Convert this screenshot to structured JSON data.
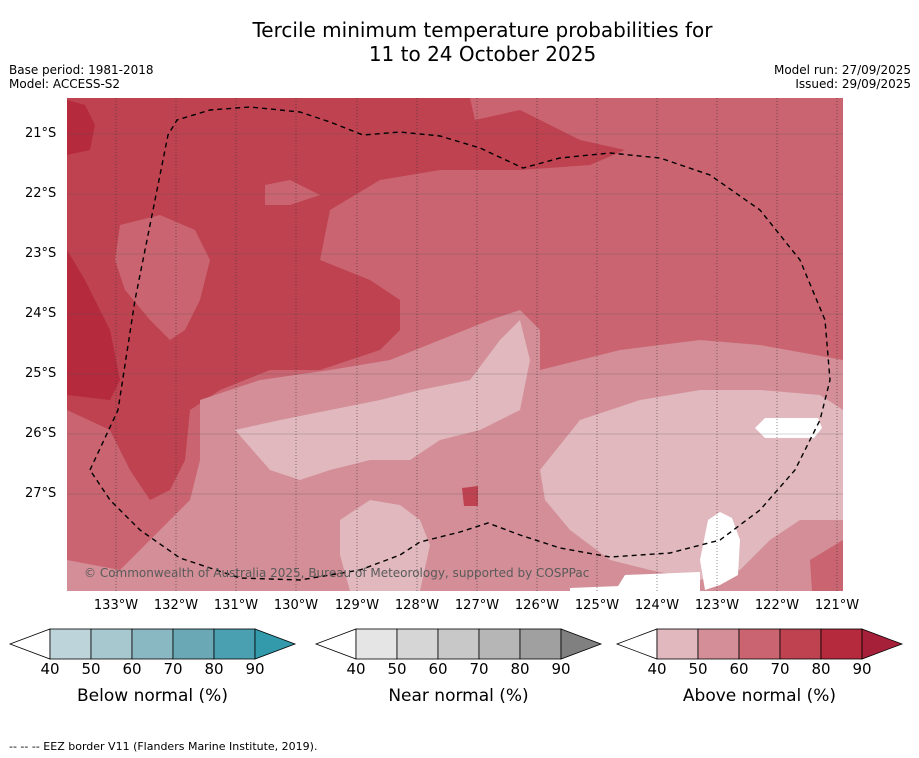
{
  "title": {
    "line1": "Tercile minimum temperature probabilities for",
    "line2": "11 to 24 October 2025"
  },
  "meta": {
    "base_period": "Base period: 1981-2018",
    "model": "Model: ACCESS-S2",
    "model_run": "Model run: 27/09/2025",
    "issued": "Issued: 29/09/2025"
  },
  "map": {
    "lat_labels": [
      "21°S",
      "22°S",
      "23°S",
      "24°S",
      "25°S",
      "26°S",
      "27°S"
    ],
    "lon_labels": [
      "133°W",
      "132°W",
      "131°W",
      "130°W",
      "129°W",
      "128°W",
      "127°W",
      "126°W",
      "125°W",
      "124°W",
      "123°W",
      "122°W",
      "121°W"
    ],
    "copyright": "© Commonwealth of Australia 2025, Bureau of Meteorology, supported by COSPPac",
    "colors": {
      "above_40": "#e0b8be",
      "above_50": "#d38e97",
      "above_60": "#c96470",
      "above_70": "#bf4250",
      "above_80": "#b52a3d",
      "white": "#ffffff",
      "eez_border": "#000000"
    }
  },
  "colorbars": [
    {
      "label": "Below normal (%)",
      "ticks": [
        "40",
        "50",
        "60",
        "70",
        "80",
        "90"
      ],
      "colors": [
        "#ffffff",
        "#bdd4da",
        "#a7c8cf",
        "#8ab8c2",
        "#6aa8b5",
        "#4aa0b0",
        "#329aab"
      ]
    },
    {
      "label": "Near normal (%)",
      "ticks": [
        "40",
        "50",
        "60",
        "70",
        "80",
        "90"
      ],
      "colors": [
        "#ffffff",
        "#e5e5e5",
        "#d6d6d6",
        "#c8c8c8",
        "#b6b6b6",
        "#a0a0a0",
        "#808080"
      ]
    },
    {
      "label": "Above normal (%)",
      "ticks": [
        "40",
        "50",
        "60",
        "70",
        "80",
        "90"
      ],
      "colors": [
        "#ffffff",
        "#e0b8be",
        "#d38e97",
        "#c96470",
        "#bf4250",
        "#b52a3d",
        "#a6203a"
      ]
    }
  ],
  "footer": "--  --  -- EEZ border V11 (Flanders Marine Institute, 2019)."
}
